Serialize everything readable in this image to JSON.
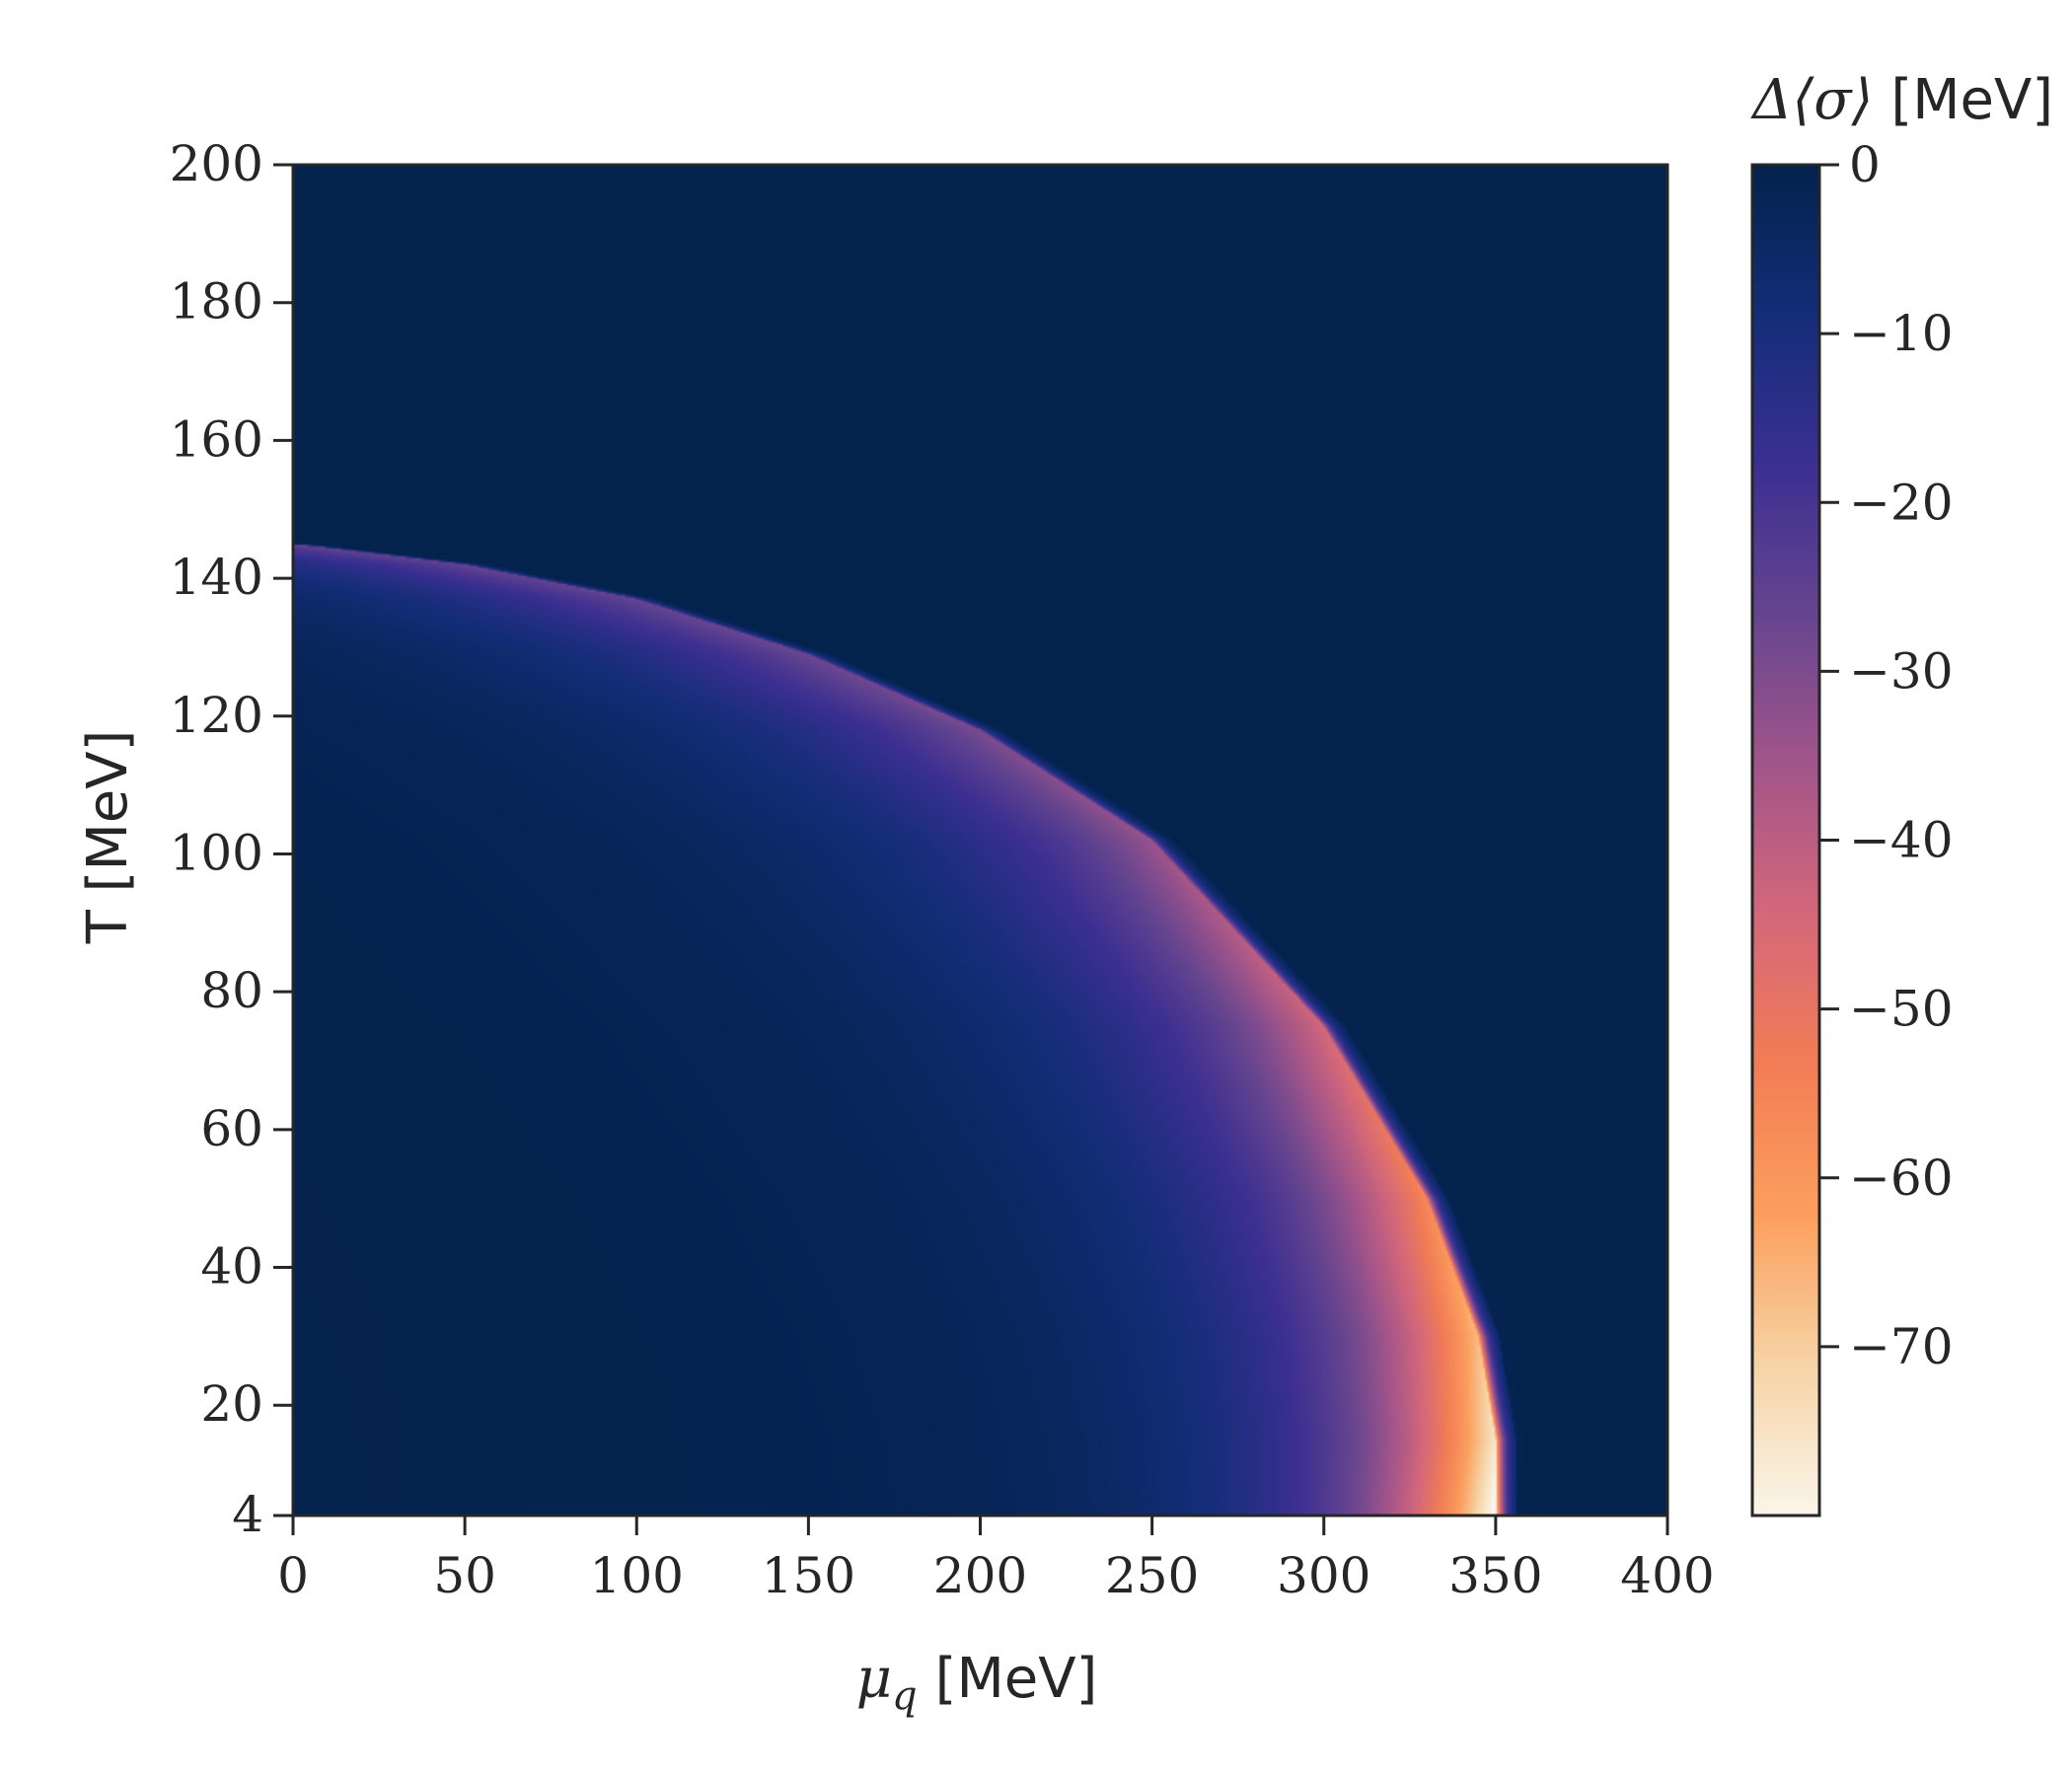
{
  "chart_data": {
    "type": "heatmap",
    "title": "",
    "xlabel": "μ_q [MeV]",
    "xlabel_symbol": "μ",
    "xlabel_subscript": "q",
    "xlabel_unit": "[MeV]",
    "ylabel": "T [MeV]",
    "xlim": [
      0,
      400
    ],
    "ylim": [
      4,
      200
    ],
    "x_ticks": [
      "0",
      "50",
      "100",
      "150",
      "200",
      "250",
      "300",
      "350",
      "400"
    ],
    "y_ticks": [
      "4",
      "20",
      "40",
      "60",
      "80",
      "100",
      "120",
      "140",
      "160",
      "180",
      "200"
    ],
    "colorbar": {
      "label": "Δ⟨σ⟩ [MeV]",
      "label_symbol": "Δ⟨σ⟩",
      "label_unit": "[MeV]",
      "range": [
        -80,
        0
      ],
      "ticks": [
        "0",
        "−10",
        "−20",
        "−30",
        "−40",
        "−50",
        "−60",
        "−70"
      ],
      "colormap": [
        "#03224c",
        "#142d78",
        "#3b2f91",
        "#66458f",
        "#a2558a",
        "#d4677a",
        "#f27d55",
        "#fc9f5e",
        "#f6d4a6",
        "#faf5ea"
      ]
    },
    "phase_boundary": {
      "description_free_values": true,
      "T_at_mu_0": 145,
      "mu_at_T_4": 350,
      "min_value_at": {
        "mu": 352,
        "T": 20,
        "value": -79
      },
      "points": [
        {
          "mu": 0,
          "T": 145
        },
        {
          "mu": 50,
          "T": 142
        },
        {
          "mu": 100,
          "T": 137
        },
        {
          "mu": 150,
          "T": 129
        },
        {
          "mu": 200,
          "T": 118
        },
        {
          "mu": 250,
          "T": 102
        },
        {
          "mu": 300,
          "T": 75
        },
        {
          "mu": 330,
          "T": 50
        },
        {
          "mu": 345,
          "T": 30
        },
        {
          "mu": 350,
          "T": 15
        },
        {
          "mu": 350,
          "T": 4
        }
      ]
    },
    "background_value": 0,
    "grid": false,
    "legend": "colorbar-right"
  }
}
